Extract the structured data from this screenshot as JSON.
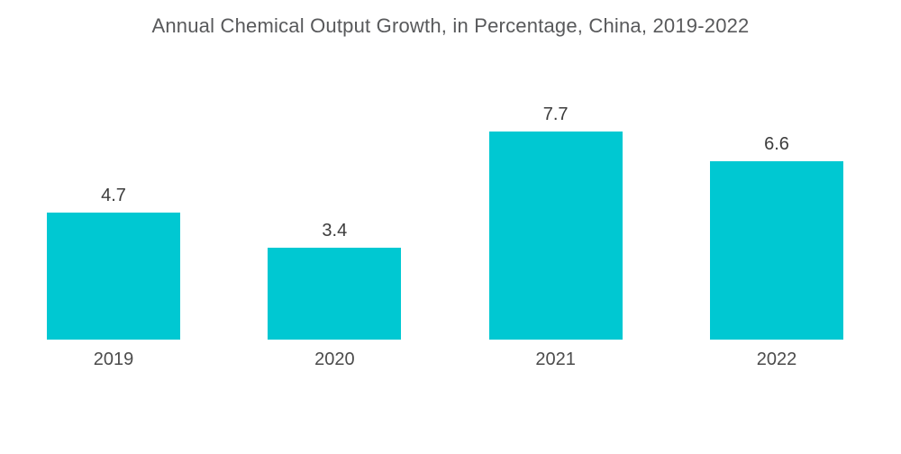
{
  "title": "Annual Chemical Output Growth, in Percentage, China, 2019-2022",
  "colors": {
    "bar": "#00c8d2",
    "title_text": "#58595b",
    "value_text": "#3c3c3c",
    "category_text": "#4b4b4b",
    "background": "#ffffff"
  },
  "chart_data": {
    "type": "bar",
    "title": "Annual Chemical Output Growth, in Percentage, China, 2019-2022",
    "categories": [
      "2019",
      "2020",
      "2021",
      "2022"
    ],
    "values": [
      4.7,
      3.4,
      7.7,
      6.6
    ],
    "xlabel": "",
    "ylabel": "",
    "unit": "percent",
    "ylim": [
      0,
      8.4
    ],
    "grid": false,
    "axes_visible": false,
    "legend": "none",
    "value_labels_position": "above bars"
  }
}
